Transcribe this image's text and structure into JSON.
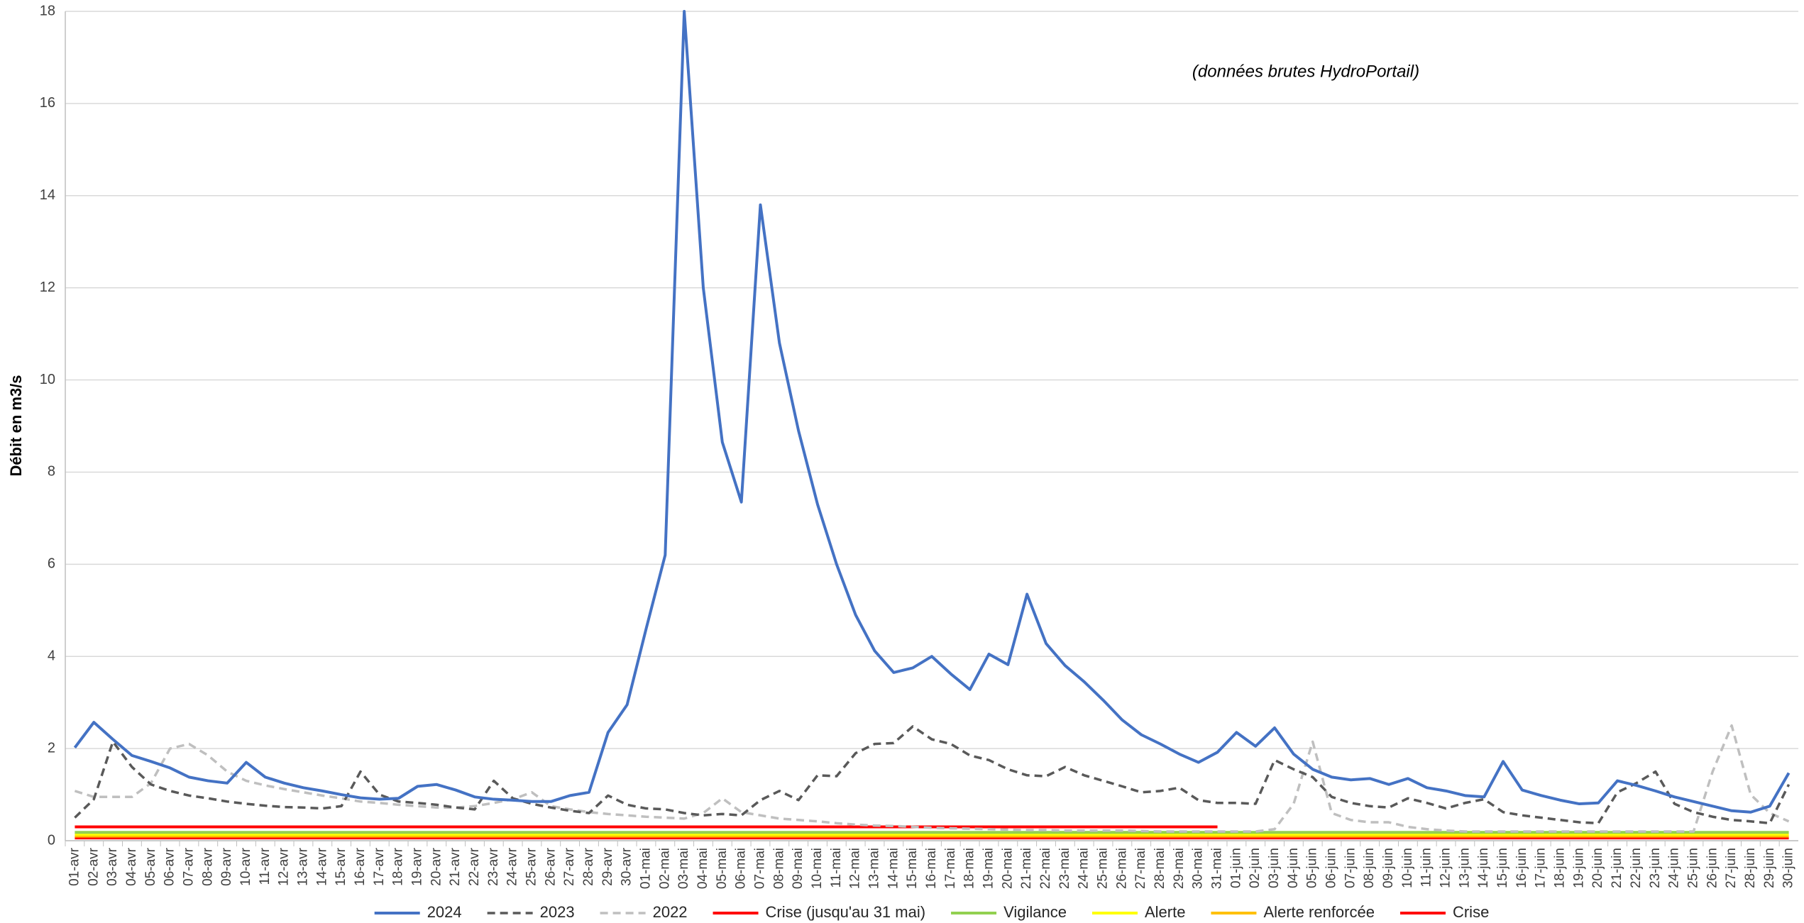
{
  "chart_data": {
    "type": "line",
    "y_label": "Débit en m3/s",
    "annotation": "(données brutes HydroPortail)",
    "ylim": [
      0,
      18
    ],
    "yticks": [
      0,
      2,
      4,
      6,
      8,
      10,
      12,
      14,
      16,
      18
    ],
    "grid": true,
    "legend": "bottom",
    "categories": [
      "01-avr",
      "02-avr",
      "03-avr",
      "04-avr",
      "05-avr",
      "06-avr",
      "07-avr",
      "08-avr",
      "09-avr",
      "10-avr",
      "11-avr",
      "12-avr",
      "13-avr",
      "14-avr",
      "15-avr",
      "16-avr",
      "17-avr",
      "18-avr",
      "19-avr",
      "20-avr",
      "21-avr",
      "22-avr",
      "23-avr",
      "24-avr",
      "25-avr",
      "26-avr",
      "27-avr",
      "28-avr",
      "29-avr",
      "30-avr",
      "01-mai",
      "02-mai",
      "03-mai",
      "04-mai",
      "05-mai",
      "06-mai",
      "07-mai",
      "08-mai",
      "09-mai",
      "10-mai",
      "11-mai",
      "12-mai",
      "13-mai",
      "14-mai",
      "15-mai",
      "16-mai",
      "17-mai",
      "18-mai",
      "19-mai",
      "20-mai",
      "21-mai",
      "22-mai",
      "23-mai",
      "24-mai",
      "25-mai",
      "26-mai",
      "27-mai",
      "28-mai",
      "29-mai",
      "30-mai",
      "31-mai",
      "01-juin",
      "02-juin",
      "03-juin",
      "04-juin",
      "05-juin",
      "06-juin",
      "07-juin",
      "08-juin",
      "09-juin",
      "10-juin",
      "11-juin",
      "12-juin",
      "13-juin",
      "14-juin",
      "15-juin",
      "16-juin",
      "17-juin",
      "18-juin",
      "19-juin",
      "20-juin",
      "21-juin",
      "22-juin",
      "23-juin",
      "24-juin",
      "25-juin",
      "26-juin",
      "27-juin",
      "28-juin",
      "29-juin",
      "30-juin"
    ],
    "series": [
      {
        "name": "2024",
        "color": "#4472c4",
        "dash": "solid",
        "values": [
          2.02,
          2.57,
          2.2,
          1.85,
          1.72,
          1.58,
          1.38,
          1.3,
          1.25,
          1.7,
          1.38,
          1.25,
          1.15,
          1.08,
          1.0,
          0.93,
          0.9,
          0.92,
          1.18,
          1.22,
          1.1,
          0.95,
          0.9,
          0.88,
          0.85,
          0.85,
          0.98,
          1.05,
          2.35,
          2.95,
          4.6,
          6.2,
          18,
          12.0,
          8.65,
          7.35,
          13.8,
          10.8,
          8.9,
          7.3,
          6.0,
          4.9,
          4.12,
          3.65,
          3.75,
          4.0,
          3.62,
          3.28,
          4.05,
          3.82,
          5.35,
          4.28,
          3.8,
          3.45,
          3.05,
          2.62,
          2.3,
          2.1,
          1.88,
          1.7,
          1.92,
          2.35,
          2.05,
          2.45,
          1.88,
          1.55,
          1.38,
          1.32,
          1.35,
          1.22,
          1.35,
          1.15,
          1.08,
          0.98,
          0.95,
          1.72,
          1.1,
          0.98,
          0.88,
          0.8,
          0.82,
          1.3,
          1.2,
          1.08,
          0.95,
          0.85,
          0.75,
          0.65,
          0.62,
          0.75,
          1.47
        ]
      },
      {
        "name": "2023",
        "color": "#595959",
        "dash": "dashed",
        "values": [
          0.5,
          0.9,
          2.15,
          1.6,
          1.22,
          1.08,
          0.98,
          0.92,
          0.85,
          0.8,
          0.76,
          0.73,
          0.72,
          0.7,
          0.75,
          1.5,
          1.0,
          0.85,
          0.82,
          0.78,
          0.72,
          0.68,
          1.3,
          0.92,
          0.8,
          0.72,
          0.65,
          0.6,
          0.98,
          0.78,
          0.7,
          0.68,
          0.6,
          0.55,
          0.58,
          0.55,
          0.88,
          1.08,
          0.88,
          1.42,
          1.4,
          1.9,
          2.1,
          2.12,
          2.48,
          2.2,
          2.1,
          1.85,
          1.75,
          1.55,
          1.42,
          1.4,
          1.6,
          1.42,
          1.3,
          1.18,
          1.05,
          1.08,
          1.15,
          0.88,
          0.82,
          0.82,
          0.8,
          1.75,
          1.55,
          1.38,
          0.95,
          0.82,
          0.75,
          0.72,
          0.92,
          0.82,
          0.7,
          0.82,
          0.9,
          0.62,
          0.55,
          0.5,
          0.45,
          0.4,
          0.38,
          1.05,
          1.25,
          1.5,
          0.8,
          0.62,
          0.52,
          0.45,
          0.42,
          0.38,
          1.22
        ]
      },
      {
        "name": "2022",
        "color": "#bfbfbf",
        "dash": "dashed",
        "values": [
          1.08,
          0.95,
          0.95,
          0.95,
          1.25,
          2.0,
          2.1,
          1.85,
          1.5,
          1.3,
          1.2,
          1.12,
          1.05,
          0.98,
          0.92,
          0.85,
          0.82,
          0.78,
          0.75,
          0.72,
          0.72,
          0.75,
          0.82,
          0.9,
          1.05,
          0.75,
          0.68,
          0.62,
          0.58,
          0.55,
          0.52,
          0.5,
          0.48,
          0.6,
          0.92,
          0.62,
          0.55,
          0.48,
          0.45,
          0.42,
          0.38,
          0.35,
          0.33,
          0.32,
          0.3,
          0.28,
          0.27,
          0.26,
          0.25,
          0.24,
          0.23,
          0.23,
          0.22,
          0.22,
          0.22,
          0.22,
          0.21,
          0.2,
          0.2,
          0.2,
          0.2,
          0.2,
          0.2,
          0.25,
          0.8,
          2.15,
          0.6,
          0.45,
          0.4,
          0.4,
          0.3,
          0.25,
          0.22,
          0.2,
          0.2,
          0.2,
          0.2,
          0.2,
          0.2,
          0.2,
          0.2,
          0.2,
          0.2,
          0.2,
          0.2,
          0.2,
          1.5,
          2.5,
          1.0,
          0.6,
          0.42
        ]
      },
      {
        "name": "Crise (jusqu'au 31 mai)",
        "color": "#ff0000",
        "dash": "solid",
        "values": [
          0.3,
          0.3,
          0.3,
          0.3,
          0.3,
          0.3,
          0.3,
          0.3,
          0.3,
          0.3,
          0.3,
          0.3,
          0.3,
          0.3,
          0.3,
          0.3,
          0.3,
          0.3,
          0.3,
          0.3,
          0.3,
          0.3,
          0.3,
          0.3,
          0.3,
          0.3,
          0.3,
          0.3,
          0.3,
          0.3,
          0.3,
          0.3,
          0.3,
          0.3,
          0.3,
          0.3,
          0.3,
          0.3,
          0.3,
          0.3,
          0.3,
          0.3,
          0.3,
          0.3,
          0.3,
          0.3,
          0.3,
          0.3,
          0.3,
          0.3,
          0.3,
          0.3,
          0.3,
          0.3,
          0.3,
          0.3,
          0.3,
          0.3,
          0.3,
          0.3,
          0.3,
          null,
          null,
          null,
          null,
          null,
          null,
          null,
          null,
          null,
          null,
          null,
          null,
          null,
          null,
          null,
          null,
          null,
          null,
          null,
          null,
          null,
          null,
          null,
          null,
          null,
          null,
          null,
          null,
          null,
          null
        ]
      },
      {
        "name": "Vigilance",
        "color": "#92d050",
        "dash": "solid",
        "values": [
          0.18,
          0.18,
          0.18,
          0.18,
          0.18,
          0.18,
          0.18,
          0.18,
          0.18,
          0.18,
          0.18,
          0.18,
          0.18,
          0.18,
          0.18,
          0.18,
          0.18,
          0.18,
          0.18,
          0.18,
          0.18,
          0.18,
          0.18,
          0.18,
          0.18,
          0.18,
          0.18,
          0.18,
          0.18,
          0.18,
          0.18,
          0.18,
          0.18,
          0.18,
          0.18,
          0.18,
          0.18,
          0.18,
          0.18,
          0.18,
          0.18,
          0.18,
          0.18,
          0.18,
          0.18,
          0.18,
          0.18,
          0.18,
          0.18,
          0.18,
          0.18,
          0.18,
          0.18,
          0.18,
          0.18,
          0.18,
          0.18,
          0.18,
          0.18,
          0.18,
          0.18,
          0.18,
          0.18,
          0.18,
          0.18,
          0.18,
          0.18,
          0.18,
          0.18,
          0.18,
          0.18,
          0.18,
          0.18,
          0.18,
          0.18,
          0.18,
          0.18,
          0.18,
          0.18,
          0.18,
          0.18,
          0.18,
          0.18,
          0.18,
          0.18,
          0.18,
          0.18,
          0.18,
          0.18,
          0.18,
          0.18
        ]
      },
      {
        "name": "Alerte",
        "color": "#ffff00",
        "dash": "solid",
        "values": [
          0.14,
          0.14,
          0.14,
          0.14,
          0.14,
          0.14,
          0.14,
          0.14,
          0.14,
          0.14,
          0.14,
          0.14,
          0.14,
          0.14,
          0.14,
          0.14,
          0.14,
          0.14,
          0.14,
          0.14,
          0.14,
          0.14,
          0.14,
          0.14,
          0.14,
          0.14,
          0.14,
          0.14,
          0.14,
          0.14,
          0.14,
          0.14,
          0.14,
          0.14,
          0.14,
          0.14,
          0.14,
          0.14,
          0.14,
          0.14,
          0.14,
          0.14,
          0.14,
          0.14,
          0.14,
          0.14,
          0.14,
          0.14,
          0.14,
          0.14,
          0.14,
          0.14,
          0.14,
          0.14,
          0.14,
          0.14,
          0.14,
          0.14,
          0.14,
          0.14,
          0.14,
          0.14,
          0.14,
          0.14,
          0.14,
          0.14,
          0.14,
          0.14,
          0.14,
          0.14,
          0.14,
          0.14,
          0.14,
          0.14,
          0.14,
          0.14,
          0.14,
          0.14,
          0.14,
          0.14,
          0.14,
          0.14,
          0.14,
          0.14,
          0.14,
          0.14,
          0.14,
          0.14,
          0.14,
          0.14,
          0.14
        ]
      },
      {
        "name": "Alerte renforcée",
        "color": "#ffc000",
        "dash": "solid",
        "values": [
          0.1,
          0.1,
          0.1,
          0.1,
          0.1,
          0.1,
          0.1,
          0.1,
          0.1,
          0.1,
          0.1,
          0.1,
          0.1,
          0.1,
          0.1,
          0.1,
          0.1,
          0.1,
          0.1,
          0.1,
          0.1,
          0.1,
          0.1,
          0.1,
          0.1,
          0.1,
          0.1,
          0.1,
          0.1,
          0.1,
          0.1,
          0.1,
          0.1,
          0.1,
          0.1,
          0.1,
          0.1,
          0.1,
          0.1,
          0.1,
          0.1,
          0.1,
          0.1,
          0.1,
          0.1,
          0.1,
          0.1,
          0.1,
          0.1,
          0.1,
          0.1,
          0.1,
          0.1,
          0.1,
          0.1,
          0.1,
          0.1,
          0.1,
          0.1,
          0.1,
          0.1,
          0.1,
          0.1,
          0.1,
          0.1,
          0.1,
          0.1,
          0.1,
          0.1,
          0.1,
          0.1,
          0.1,
          0.1,
          0.1,
          0.1,
          0.1,
          0.1,
          0.1,
          0.1,
          0.1,
          0.1,
          0.1,
          0.1,
          0.1,
          0.1,
          0.1,
          0.1,
          0.1,
          0.1,
          0.1,
          0.1
        ]
      },
      {
        "name": "Crise",
        "color": "#ff0000",
        "dash": "solid",
        "values": [
          0.06,
          0.06,
          0.06,
          0.06,
          0.06,
          0.06,
          0.06,
          0.06,
          0.06,
          0.06,
          0.06,
          0.06,
          0.06,
          0.06,
          0.06,
          0.06,
          0.06,
          0.06,
          0.06,
          0.06,
          0.06,
          0.06,
          0.06,
          0.06,
          0.06,
          0.06,
          0.06,
          0.06,
          0.06,
          0.06,
          0.06,
          0.06,
          0.06,
          0.06,
          0.06,
          0.06,
          0.06,
          0.06,
          0.06,
          0.06,
          0.06,
          0.06,
          0.06,
          0.06,
          0.06,
          0.06,
          0.06,
          0.06,
          0.06,
          0.06,
          0.06,
          0.06,
          0.06,
          0.06,
          0.06,
          0.06,
          0.06,
          0.06,
          0.06,
          0.06,
          0.06,
          0.06,
          0.06,
          0.06,
          0.06,
          0.06,
          0.06,
          0.06,
          0.06,
          0.06,
          0.06,
          0.06,
          0.06,
          0.06,
          0.06,
          0.06,
          0.06,
          0.06,
          0.06,
          0.06,
          0.06,
          0.06,
          0.06,
          0.06,
          0.06,
          0.06,
          0.06,
          0.06,
          0.06,
          0.06,
          0.06
        ]
      }
    ]
  }
}
